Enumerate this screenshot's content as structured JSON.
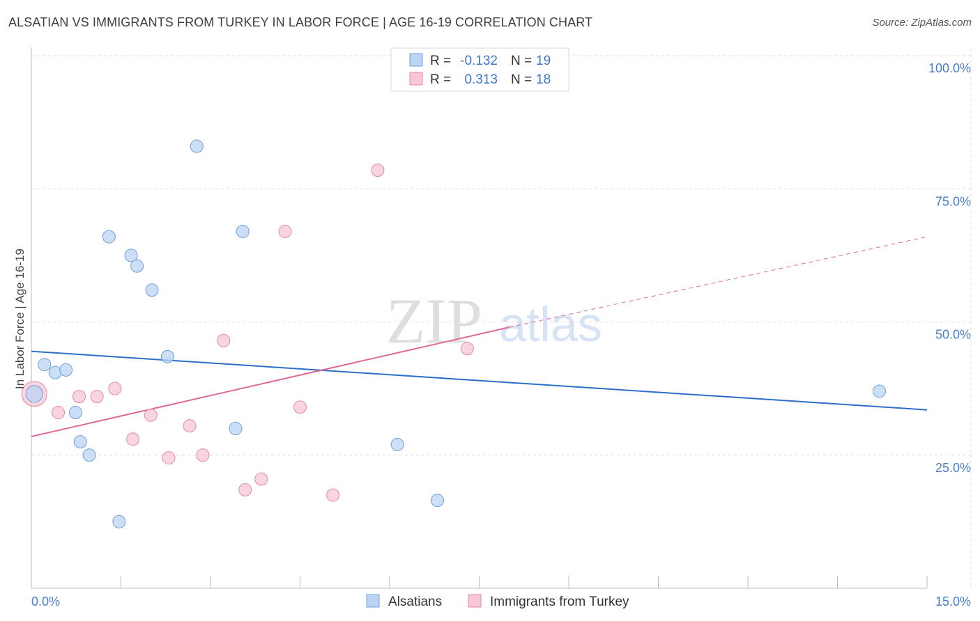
{
  "header": {
    "title": "ALSATIAN VS IMMIGRANTS FROM TURKEY IN LABOR FORCE | AGE 16-19 CORRELATION CHART",
    "source": "Source: ZipAtlas.com"
  },
  "watermark": {
    "zip": "ZIP",
    "atlas": "atlas"
  },
  "colors": {
    "alsatian_fill": "#bcd4f3",
    "alsatian_stroke": "#6e9fdc",
    "alsatian_line": "#2b6fca",
    "turkey_fill": "#f8c6d4",
    "turkey_stroke": "#e58aa6",
    "turkey_line": "#e0689a",
    "grid": "#dcdcdc",
    "axis_label": "#4a7fc8"
  },
  "chart_data": {
    "type": "scatter",
    "title": "ALSATIAN VS IMMIGRANTS FROM TURKEY IN LABOR FORCE | AGE 16-19 CORRELATION CHART",
    "xlabel": "",
    "ylabel": "In Labor Force | Age 16-19",
    "xlim": [
      0,
      15
    ],
    "ylim": [
      0,
      100
    ],
    "x_ticks_labels": [
      "0.0%",
      "15.0%"
    ],
    "y_ticks": [
      25,
      50,
      75,
      100
    ],
    "y_tick_labels": [
      "25.0%",
      "50.0%",
      "75.0%",
      "100.0%"
    ],
    "grid": true,
    "legend": [
      {
        "label": "R =",
        "r": "-0.132",
        "n_label": "N =",
        "n": "19"
      },
      {
        "label": "R =",
        "r": "0.313",
        "n_label": "N =",
        "n": "18"
      }
    ],
    "series": [
      {
        "name": "Alsatians",
        "points": [
          [
            0.05,
            36.5,
            12
          ],
          [
            0.22,
            42,
            9
          ],
          [
            0.4,
            40.5,
            9
          ],
          [
            0.58,
            41,
            9
          ],
          [
            0.74,
            33,
            9
          ],
          [
            0.82,
            27.5,
            9
          ],
          [
            0.97,
            25,
            9
          ],
          [
            1.3,
            66,
            9
          ],
          [
            1.47,
            12.5,
            9
          ],
          [
            1.67,
            62.5,
            9
          ],
          [
            1.77,
            60.5,
            9
          ],
          [
            2.02,
            56,
            9
          ],
          [
            2.28,
            43.5,
            9
          ],
          [
            2.77,
            83,
            9
          ],
          [
            3.42,
            30,
            9
          ],
          [
            3.54,
            67,
            9
          ],
          [
            6.13,
            27,
            9
          ],
          [
            6.8,
            16.5,
            9
          ],
          [
            14.2,
            37,
            9
          ]
        ],
        "trend": {
          "x": [
            0,
            15
          ],
          "y": [
            44.5,
            33.5
          ]
        }
      },
      {
        "name": "Immigrants from Turkey",
        "points": [
          [
            0.05,
            36.5,
            18
          ],
          [
            0.45,
            33,
            9
          ],
          [
            0.8,
            36,
            9
          ],
          [
            1.1,
            36,
            9
          ],
          [
            1.4,
            37.5,
            9
          ],
          [
            1.7,
            28,
            9
          ],
          [
            2.0,
            32.5,
            9
          ],
          [
            2.3,
            24.5,
            9
          ],
          [
            2.65,
            30.5,
            9
          ],
          [
            2.87,
            25,
            9
          ],
          [
            3.22,
            46.5,
            9
          ],
          [
            3.58,
            18.5,
            9
          ],
          [
            3.85,
            20.5,
            9
          ],
          [
            4.25,
            67,
            9
          ],
          [
            4.5,
            34,
            9
          ],
          [
            5.05,
            17.5,
            9
          ],
          [
            5.8,
            78.5,
            9
          ],
          [
            7.3,
            45,
            9
          ]
        ],
        "trend": {
          "x": [
            0,
            8.0
          ],
          "y": [
            28.5,
            49
          ],
          "dashed_x": [
            8.0,
            15
          ],
          "dashed_y": [
            49,
            66
          ]
        }
      }
    ]
  }
}
